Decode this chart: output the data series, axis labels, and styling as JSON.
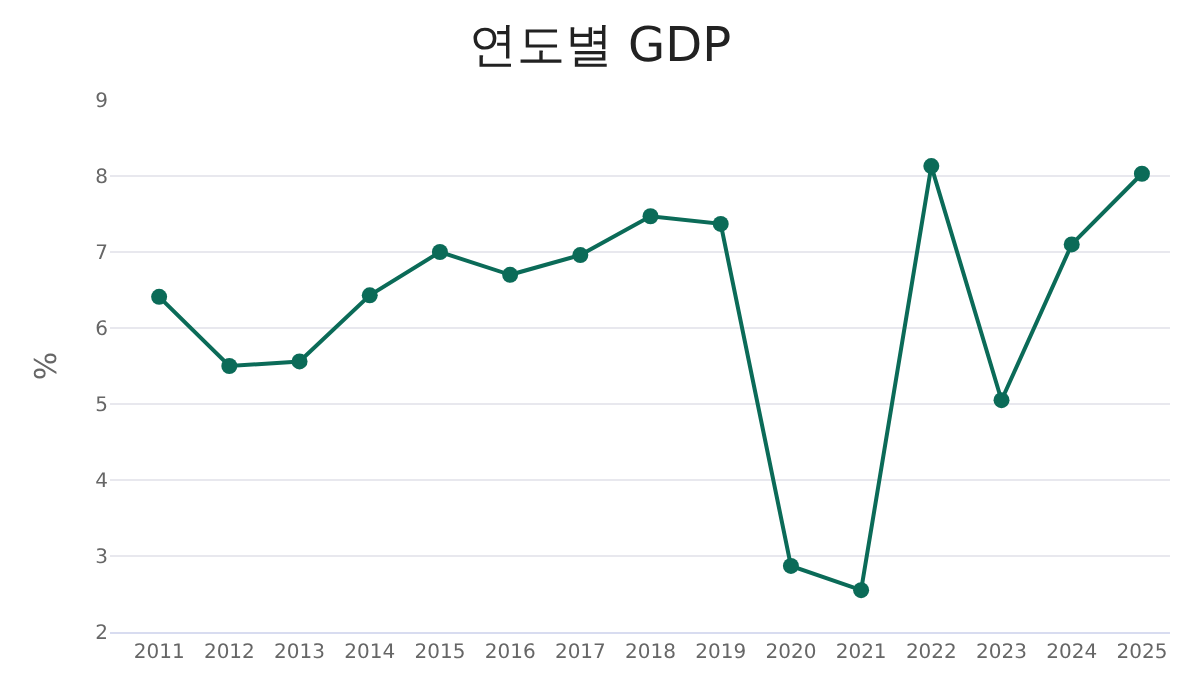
{
  "chart_data": {
    "type": "line",
    "title": "연도별 GDP",
    "ylabel": "%",
    "categories": [
      "2011",
      "2012",
      "2013",
      "2014",
      "2015",
      "2016",
      "2017",
      "2018",
      "2019",
      "2020",
      "2021",
      "2022",
      "2023",
      "2024",
      "2025"
    ],
    "series": [
      {
        "color": "#0b6b58",
        "values": [
          6.41,
          5.5,
          5.56,
          6.43,
          7.0,
          6.7,
          6.96,
          7.47,
          7.37,
          2.87,
          2.55,
          8.13,
          5.05,
          7.1,
          8.03
        ]
      }
    ],
    "ylim": [
      2,
      9
    ],
    "yticks": [
      2,
      3,
      4,
      5,
      6,
      7,
      8,
      9
    ],
    "grid": "y",
    "marker": "circle",
    "line_style": "solid"
  }
}
